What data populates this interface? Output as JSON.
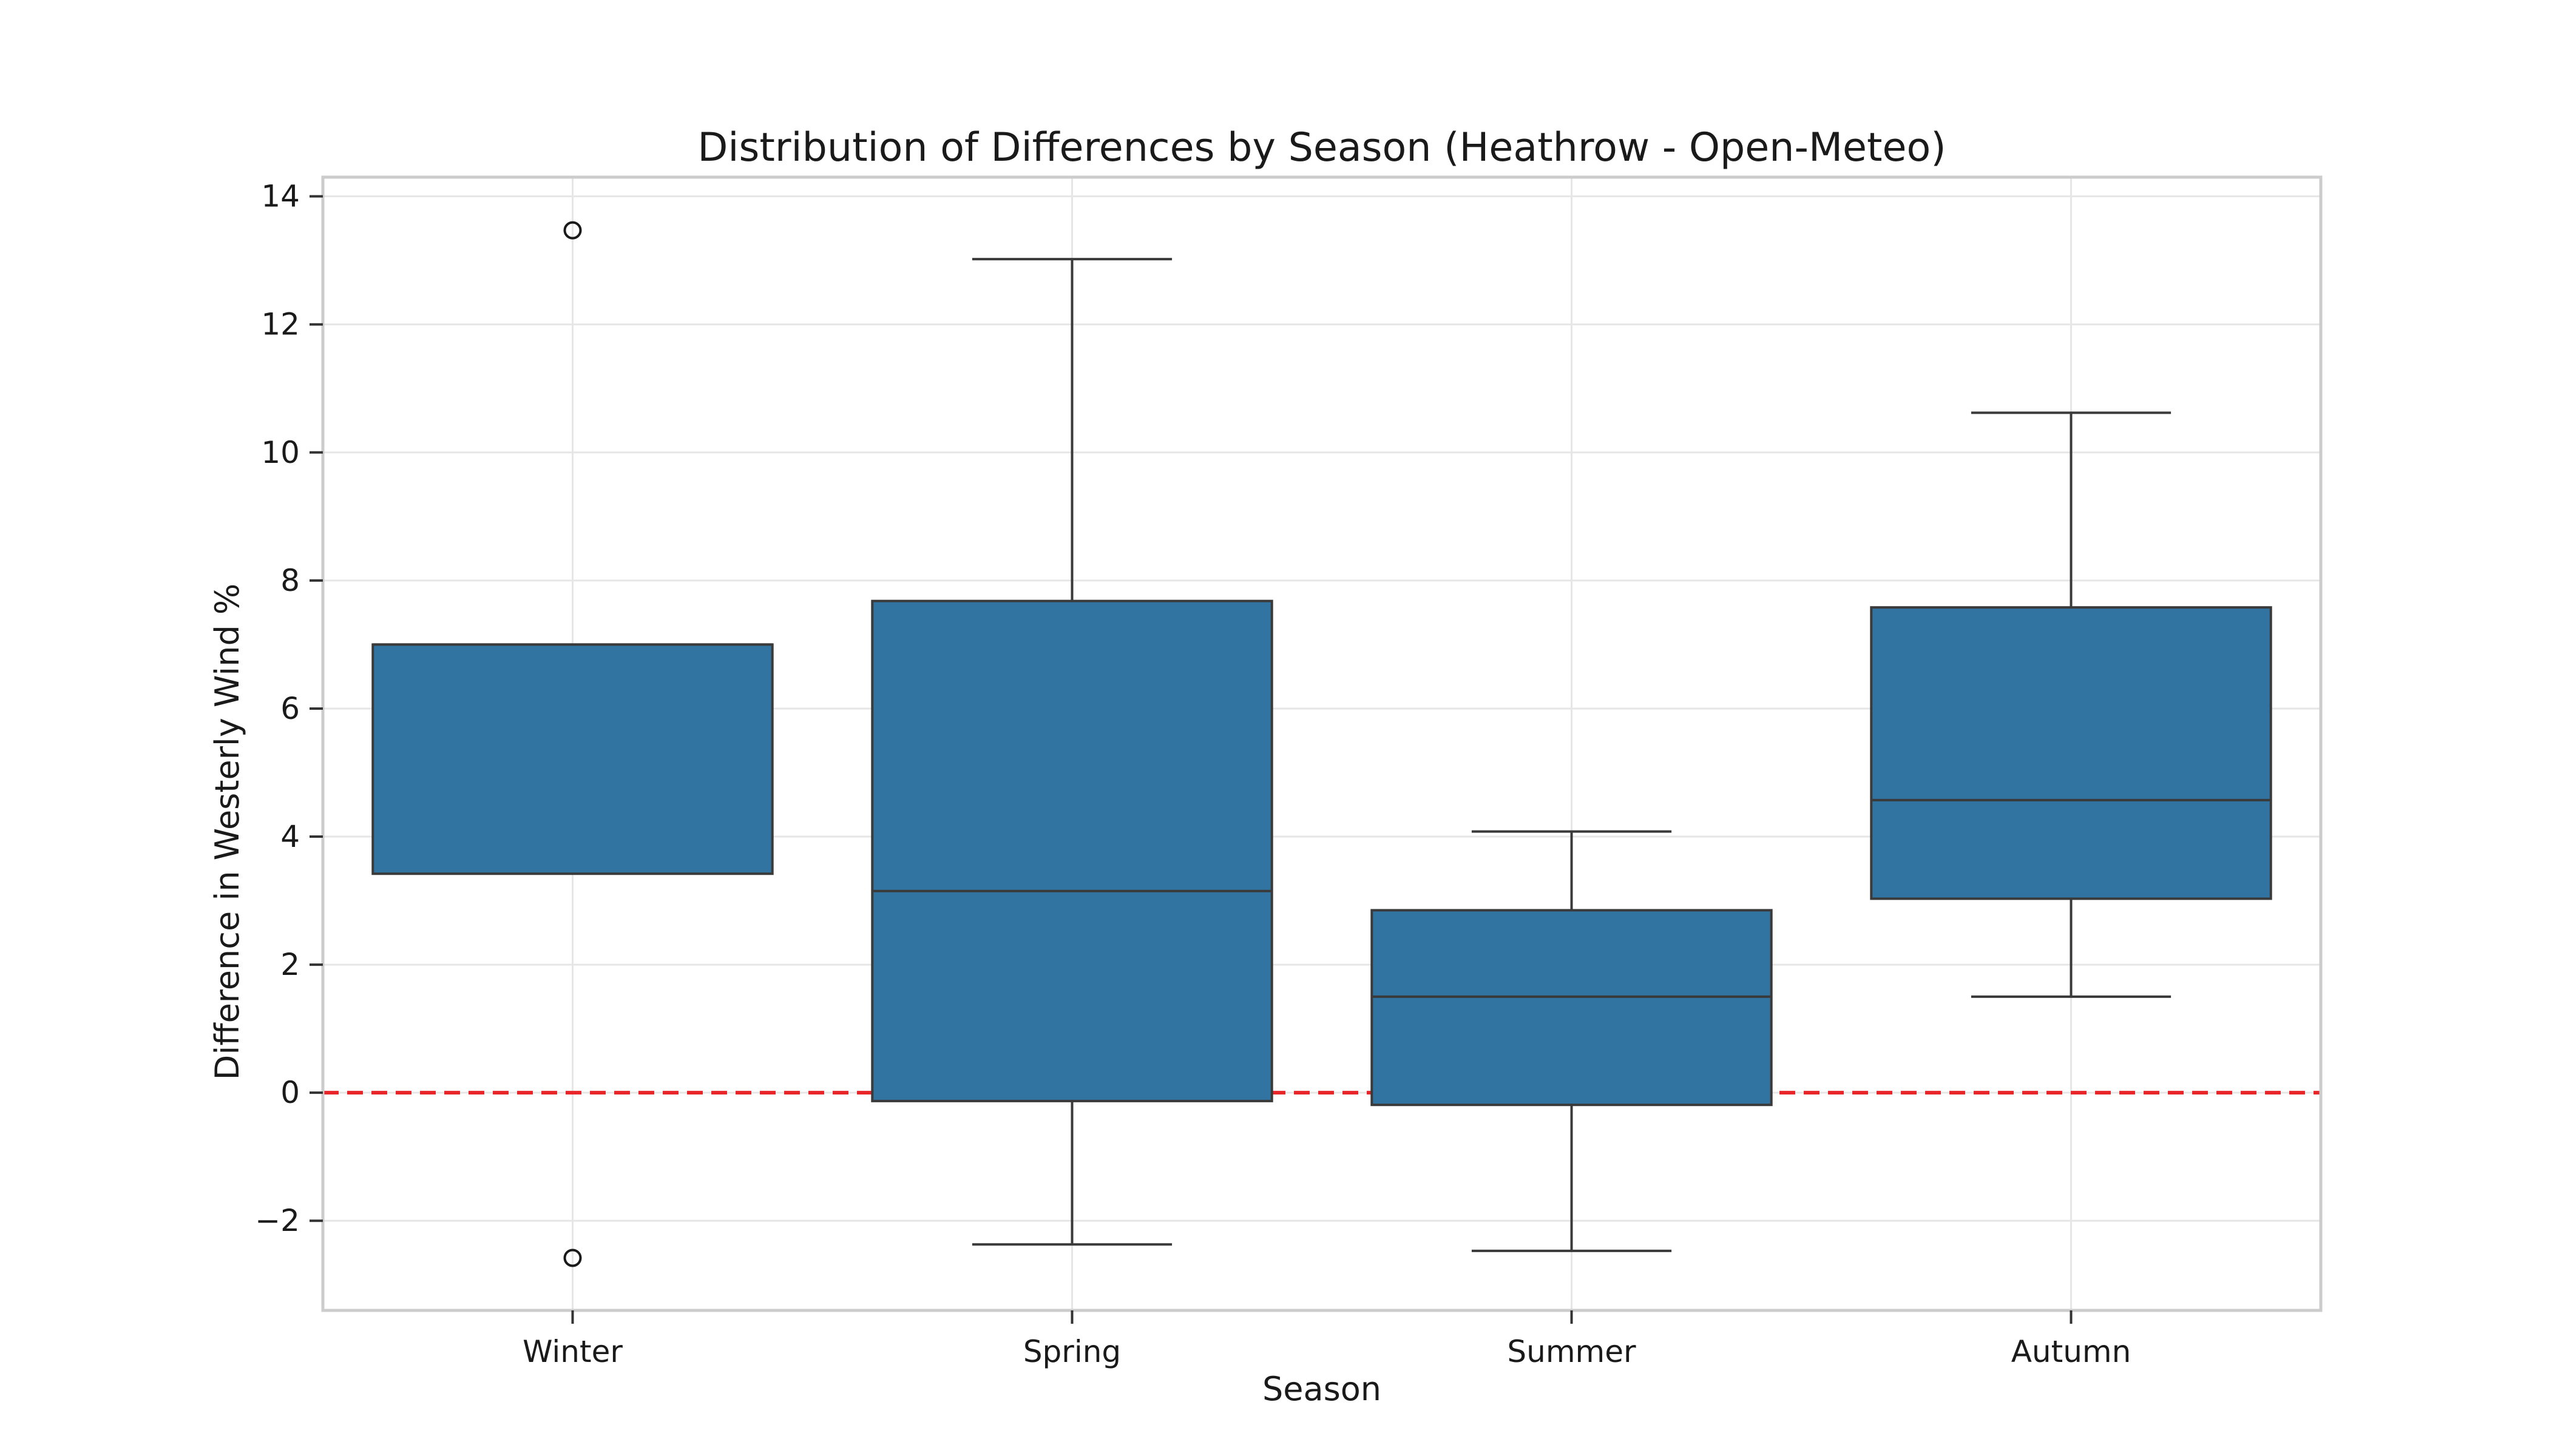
{
  "chart_data": {
    "type": "box",
    "title": "Distribution of Differences by Season (Heathrow - Open-Meteo)",
    "xlabel": "Season",
    "ylabel": "Difference in Westerly Wind %",
    "ylim": [
      -3.4,
      14.3
    ],
    "yticks": [
      -2,
      0,
      2,
      4,
      6,
      8,
      10,
      12,
      14
    ],
    "grid": true,
    "box_color": "#3274a1",
    "reference_line": {
      "y": 0,
      "color": "#e8262a",
      "style": "dashed"
    },
    "categories": [
      "Winter",
      "Spring",
      "Summer",
      "Autumn"
    ],
    "boxes": [
      {
        "category": "Winter",
        "whisker_low": 3.42,
        "q1": 3.42,
        "median": 7.0,
        "q3": 7.0,
        "whisker_high": 7.0,
        "outliers": [
          13.47,
          -2.58
        ]
      },
      {
        "category": "Spring",
        "whisker_low": -2.37,
        "q1": -0.13,
        "median": 3.15,
        "q3": 7.68,
        "whisker_high": 13.02,
        "outliers": []
      },
      {
        "category": "Summer",
        "whisker_low": -2.47,
        "q1": -0.19,
        "median": 1.5,
        "q3": 2.85,
        "whisker_high": 4.08,
        "outliers": []
      },
      {
        "category": "Autumn",
        "whisker_low": 1.5,
        "q1": 3.03,
        "median": 4.57,
        "q3": 7.58,
        "whisker_high": 10.62,
        "outliers": []
      }
    ]
  }
}
